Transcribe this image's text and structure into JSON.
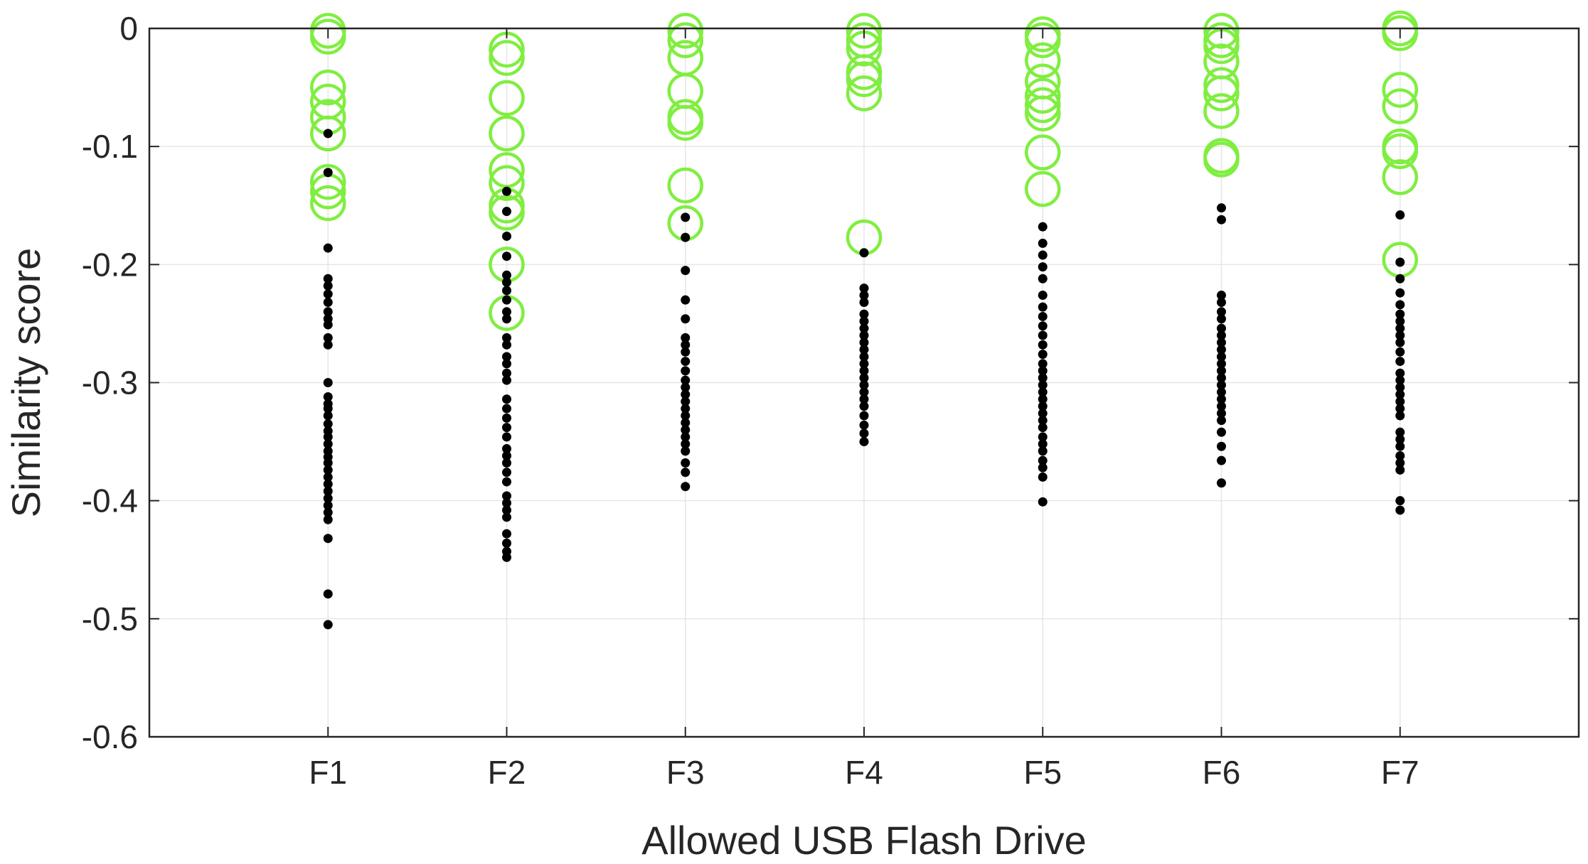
{
  "chart_data": {
    "type": "scatter",
    "title": "",
    "xlabel": "Allowed USB Flash Drive",
    "ylabel": "Similarity score",
    "categories": [
      "F1",
      "F2",
      "F3",
      "F4",
      "F5",
      "F6",
      "F7"
    ],
    "xlim": [
      0,
      8
    ],
    "ylim": [
      -0.6,
      0
    ],
    "yticks": [
      0,
      -0.1,
      -0.2,
      -0.3,
      -0.4,
      -0.5,
      -0.6
    ],
    "ytick_labels": [
      "0",
      "-0.1",
      "-0.2",
      "-0.3",
      "-0.4",
      "-0.5",
      "-0.6"
    ],
    "grid": true,
    "colors": {
      "match": "#80ee40",
      "non_match": "#000000",
      "axis": "#262626",
      "grid": "#e6e6e6"
    },
    "series": [
      {
        "marker": "circle-open",
        "color": "#80ee40",
        "points": [
          [
            1,
            -0.002
          ],
          [
            1,
            -0.007
          ],
          [
            1,
            -0.05
          ],
          [
            1,
            -0.062
          ],
          [
            1,
            -0.075
          ],
          [
            1,
            -0.089
          ],
          [
            1,
            -0.13
          ],
          [
            1,
            -0.138
          ],
          [
            1,
            -0.148
          ],
          [
            2,
            -0.018
          ],
          [
            2,
            -0.025
          ],
          [
            2,
            -0.059
          ],
          [
            2,
            -0.089
          ],
          [
            2,
            -0.12
          ],
          [
            2,
            -0.131
          ],
          [
            2,
            -0.15
          ],
          [
            2,
            -0.156
          ],
          [
            2,
            -0.2
          ],
          [
            2,
            -0.241
          ],
          [
            3,
            -0.002
          ],
          [
            3,
            -0.01
          ],
          [
            3,
            -0.025
          ],
          [
            3,
            -0.053
          ],
          [
            3,
            -0.075
          ],
          [
            3,
            -0.08
          ],
          [
            3,
            -0.133
          ],
          [
            3,
            -0.165
          ],
          [
            4,
            -0.002
          ],
          [
            4,
            -0.01
          ],
          [
            4,
            -0.017
          ],
          [
            4,
            -0.037
          ],
          [
            4,
            -0.043
          ],
          [
            4,
            -0.055
          ],
          [
            4,
            -0.177
          ],
          [
            5,
            -0.005
          ],
          [
            5,
            -0.01
          ],
          [
            5,
            -0.027
          ],
          [
            5,
            -0.045
          ],
          [
            5,
            -0.057
          ],
          [
            5,
            -0.065
          ],
          [
            5,
            -0.072
          ],
          [
            5,
            -0.105
          ],
          [
            5,
            -0.136
          ],
          [
            6,
            -0.002
          ],
          [
            6,
            -0.01
          ],
          [
            6,
            -0.015
          ],
          [
            6,
            -0.028
          ],
          [
            6,
            -0.048
          ],
          [
            6,
            -0.055
          ],
          [
            6,
            -0.07
          ],
          [
            6,
            -0.108
          ],
          [
            6,
            -0.111
          ],
          [
            7,
            0.0
          ],
          [
            7,
            -0.004
          ],
          [
            7,
            -0.052
          ],
          [
            7,
            -0.066
          ],
          [
            7,
            -0.1
          ],
          [
            7,
            -0.104
          ],
          [
            7,
            -0.126
          ],
          [
            7,
            -0.196
          ]
        ]
      },
      {
        "marker": "dot",
        "color": "#000000",
        "points": [
          [
            1,
            -0.089
          ],
          [
            1,
            -0.122
          ],
          [
            1,
            -0.186
          ],
          [
            1,
            -0.212
          ],
          [
            1,
            -0.218
          ],
          [
            1,
            -0.225
          ],
          [
            1,
            -0.232
          ],
          [
            1,
            -0.24
          ],
          [
            1,
            -0.246
          ],
          [
            1,
            -0.251
          ],
          [
            1,
            -0.262
          ],
          [
            1,
            -0.268
          ],
          [
            1,
            -0.3
          ],
          [
            1,
            -0.312
          ],
          [
            1,
            -0.318
          ],
          [
            1,
            -0.322
          ],
          [
            1,
            -0.328
          ],
          [
            1,
            -0.335
          ],
          [
            1,
            -0.341
          ],
          [
            1,
            -0.346
          ],
          [
            1,
            -0.352
          ],
          [
            1,
            -0.358
          ],
          [
            1,
            -0.363
          ],
          [
            1,
            -0.368
          ],
          [
            1,
            -0.374
          ],
          [
            1,
            -0.38
          ],
          [
            1,
            -0.386
          ],
          [
            1,
            -0.392
          ],
          [
            1,
            -0.398
          ],
          [
            1,
            -0.404
          ],
          [
            1,
            -0.41
          ],
          [
            1,
            -0.416
          ],
          [
            1,
            -0.432
          ],
          [
            1,
            -0.479
          ],
          [
            1,
            -0.505
          ],
          [
            2,
            -0.138
          ],
          [
            2,
            -0.155
          ],
          [
            2,
            -0.176
          ],
          [
            2,
            -0.193
          ],
          [
            2,
            -0.209
          ],
          [
            2,
            -0.215
          ],
          [
            2,
            -0.222
          ],
          [
            2,
            -0.23
          ],
          [
            2,
            -0.24
          ],
          [
            2,
            -0.246
          ],
          [
            2,
            -0.262
          ],
          [
            2,
            -0.268
          ],
          [
            2,
            -0.278
          ],
          [
            2,
            -0.284
          ],
          [
            2,
            -0.292
          ],
          [
            2,
            -0.298
          ],
          [
            2,
            -0.314
          ],
          [
            2,
            -0.322
          ],
          [
            2,
            -0.33
          ],
          [
            2,
            -0.338
          ],
          [
            2,
            -0.346
          ],
          [
            2,
            -0.356
          ],
          [
            2,
            -0.362
          ],
          [
            2,
            -0.368
          ],
          [
            2,
            -0.376
          ],
          [
            2,
            -0.384
          ],
          [
            2,
            -0.396
          ],
          [
            2,
            -0.402
          ],
          [
            2,
            -0.408
          ],
          [
            2,
            -0.414
          ],
          [
            2,
            -0.428
          ],
          [
            2,
            -0.436
          ],
          [
            2,
            -0.443
          ],
          [
            2,
            -0.448
          ],
          [
            3,
            -0.16
          ],
          [
            3,
            -0.177
          ],
          [
            3,
            -0.205
          ],
          [
            3,
            -0.23
          ],
          [
            3,
            -0.246
          ],
          [
            3,
            -0.262
          ],
          [
            3,
            -0.268
          ],
          [
            3,
            -0.274
          ],
          [
            3,
            -0.282
          ],
          [
            3,
            -0.29
          ],
          [
            3,
            -0.298
          ],
          [
            3,
            -0.304
          ],
          [
            3,
            -0.31
          ],
          [
            3,
            -0.316
          ],
          [
            3,
            -0.322
          ],
          [
            3,
            -0.328
          ],
          [
            3,
            -0.334
          ],
          [
            3,
            -0.34
          ],
          [
            3,
            -0.346
          ],
          [
            3,
            -0.352
          ],
          [
            3,
            -0.358
          ],
          [
            3,
            -0.368
          ],
          [
            3,
            -0.376
          ],
          [
            3,
            -0.388
          ],
          [
            4,
            -0.19
          ],
          [
            4,
            -0.22
          ],
          [
            4,
            -0.226
          ],
          [
            4,
            -0.232
          ],
          [
            4,
            -0.242
          ],
          [
            4,
            -0.248
          ],
          [
            4,
            -0.254
          ],
          [
            4,
            -0.26
          ],
          [
            4,
            -0.266
          ],
          [
            4,
            -0.272
          ],
          [
            4,
            -0.278
          ],
          [
            4,
            -0.284
          ],
          [
            4,
            -0.29
          ],
          [
            4,
            -0.296
          ],
          [
            4,
            -0.302
          ],
          [
            4,
            -0.308
          ],
          [
            4,
            -0.314
          ],
          [
            4,
            -0.32
          ],
          [
            4,
            -0.328
          ],
          [
            4,
            -0.336
          ],
          [
            4,
            -0.343
          ],
          [
            4,
            -0.35
          ],
          [
            5,
            -0.168
          ],
          [
            5,
            -0.182
          ],
          [
            5,
            -0.192
          ],
          [
            5,
            -0.202
          ],
          [
            5,
            -0.212
          ],
          [
            5,
            -0.226
          ],
          [
            5,
            -0.236
          ],
          [
            5,
            -0.244
          ],
          [
            5,
            -0.252
          ],
          [
            5,
            -0.26
          ],
          [
            5,
            -0.268
          ],
          [
            5,
            -0.276
          ],
          [
            5,
            -0.284
          ],
          [
            5,
            -0.29
          ],
          [
            5,
            -0.296
          ],
          [
            5,
            -0.302
          ],
          [
            5,
            -0.308
          ],
          [
            5,
            -0.314
          ],
          [
            5,
            -0.32
          ],
          [
            5,
            -0.326
          ],
          [
            5,
            -0.332
          ],
          [
            5,
            -0.338
          ],
          [
            5,
            -0.346
          ],
          [
            5,
            -0.352
          ],
          [
            5,
            -0.358
          ],
          [
            5,
            -0.366
          ],
          [
            5,
            -0.372
          ],
          [
            5,
            -0.38
          ],
          [
            5,
            -0.401
          ],
          [
            6,
            -0.152
          ],
          [
            6,
            -0.162
          ],
          [
            6,
            -0.226
          ],
          [
            6,
            -0.232
          ],
          [
            6,
            -0.24
          ],
          [
            6,
            -0.246
          ],
          [
            6,
            -0.254
          ],
          [
            6,
            -0.26
          ],
          [
            6,
            -0.266
          ],
          [
            6,
            -0.272
          ],
          [
            6,
            -0.278
          ],
          [
            6,
            -0.284
          ],
          [
            6,
            -0.29
          ],
          [
            6,
            -0.296
          ],
          [
            6,
            -0.302
          ],
          [
            6,
            -0.308
          ],
          [
            6,
            -0.314
          ],
          [
            6,
            -0.32
          ],
          [
            6,
            -0.326
          ],
          [
            6,
            -0.332
          ],
          [
            6,
            -0.342
          ],
          [
            6,
            -0.354
          ],
          [
            6,
            -0.366
          ],
          [
            6,
            -0.385
          ],
          [
            7,
            -0.158
          ],
          [
            7,
            -0.198
          ],
          [
            7,
            -0.212
          ],
          [
            7,
            -0.224
          ],
          [
            7,
            -0.234
          ],
          [
            7,
            -0.242
          ],
          [
            7,
            -0.248
          ],
          [
            7,
            -0.254
          ],
          [
            7,
            -0.26
          ],
          [
            7,
            -0.266
          ],
          [
            7,
            -0.274
          ],
          [
            7,
            -0.282
          ],
          [
            7,
            -0.292
          ],
          [
            7,
            -0.298
          ],
          [
            7,
            -0.304
          ],
          [
            7,
            -0.31
          ],
          [
            7,
            -0.316
          ],
          [
            7,
            -0.322
          ],
          [
            7,
            -0.328
          ],
          [
            7,
            -0.342
          ],
          [
            7,
            -0.348
          ],
          [
            7,
            -0.354
          ],
          [
            7,
            -0.362
          ],
          [
            7,
            -0.368
          ],
          [
            7,
            -0.374
          ],
          [
            7,
            -0.4
          ],
          [
            7,
            -0.408
          ]
        ]
      }
    ]
  }
}
